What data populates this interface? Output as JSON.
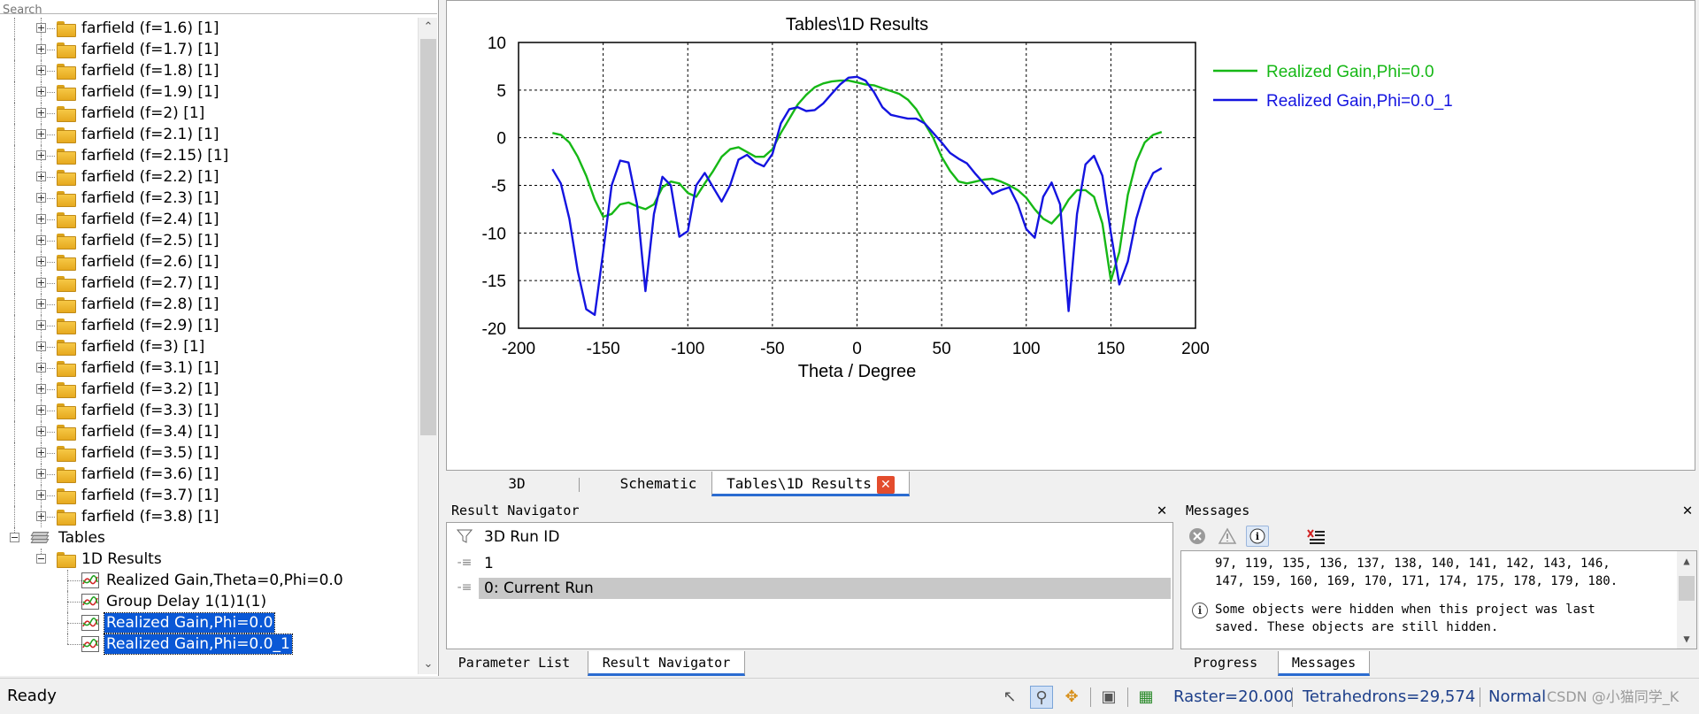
{
  "search": {
    "placeholder": "Search"
  },
  "tree": {
    "farfields": [
      "farfield (f=1.6) [1]",
      "farfield (f=1.7) [1]",
      "farfield (f=1.8) [1]",
      "farfield (f=1.9) [1]",
      "farfield (f=2) [1]",
      "farfield (f=2.1) [1]",
      "farfield (f=2.15) [1]",
      "farfield (f=2.2) [1]",
      "farfield (f=2.3) [1]",
      "farfield (f=2.4) [1]",
      "farfield (f=2.5) [1]",
      "farfield (f=2.6) [1]",
      "farfield (f=2.7) [1]",
      "farfield (f=2.8) [1]",
      "farfield (f=2.9) [1]",
      "farfield (f=3) [1]",
      "farfield (f=3.1) [1]",
      "farfield (f=3.2) [1]",
      "farfield (f=3.3) [1]",
      "farfield (f=3.4) [1]",
      "farfield (f=3.5) [1]",
      "farfield (f=3.6) [1]",
      "farfield (f=3.7) [1]",
      "farfield (f=3.8) [1]"
    ],
    "tables_label": "Tables",
    "results_label": "1D Results",
    "results_items": [
      {
        "label": "Realized Gain,Theta=0,Phi=0.0",
        "selected": false
      },
      {
        "label": "Group Delay 1(1)1(1)",
        "selected": false
      },
      {
        "label": "Realized Gain,Phi=0.0",
        "selected": true
      },
      {
        "label": "Realized Gain,Phi=0.0_1",
        "selected": true
      }
    ]
  },
  "chart_data": {
    "type": "line",
    "title": "Tables\\1D Results",
    "xlabel": "Theta / Degree",
    "ylabel": "",
    "xlim": [
      -200,
      200
    ],
    "ylim": [
      -20,
      10
    ],
    "xticks": [
      -200,
      -150,
      -100,
      -50,
      0,
      50,
      100,
      150,
      200
    ],
    "yticks": [
      -20,
      -15,
      -10,
      -5,
      0,
      5,
      10
    ],
    "grid": true,
    "legend_position": "right",
    "series": [
      {
        "name": "Realized Gain,Phi=0.0",
        "color": "#16b816",
        "x": [
          -180,
          -175,
          -170,
          -165,
          -160,
          -155,
          -150,
          -145,
          -140,
          -135,
          -130,
          -125,
          -120,
          -115,
          -110,
          -105,
          -100,
          -95,
          -90,
          -85,
          -80,
          -75,
          -70,
          -65,
          -60,
          -55,
          -50,
          -45,
          -40,
          -35,
          -30,
          -25,
          -20,
          -15,
          -10,
          -5,
          0,
          5,
          10,
          15,
          20,
          25,
          30,
          35,
          40,
          45,
          50,
          55,
          60,
          65,
          70,
          75,
          80,
          85,
          90,
          95,
          100,
          105,
          110,
          115,
          120,
          125,
          130,
          135,
          140,
          145,
          150,
          155,
          160,
          165,
          170,
          175,
          180
        ],
        "y": [
          0.5,
          0.3,
          -0.5,
          -2,
          -4,
          -6.5,
          -8.3,
          -8,
          -7,
          -6.8,
          -7.2,
          -7.5,
          -7,
          -5.2,
          -4.6,
          -4.8,
          -5.8,
          -6.2,
          -4.8,
          -3.5,
          -2,
          -1.2,
          -1,
          -1.5,
          -2,
          -2,
          -1.2,
          0.5,
          2,
          3.5,
          4.5,
          5.3,
          5.7,
          5.9,
          6,
          6,
          5.8,
          5.6,
          5.5,
          5.2,
          4.9,
          4.6,
          4,
          3,
          1.5,
          0,
          -2,
          -3.5,
          -4.6,
          -4.8,
          -4.6,
          -4.4,
          -4.3,
          -4.6,
          -5,
          -5.5,
          -6.3,
          -7.5,
          -8.5,
          -9,
          -8,
          -6.5,
          -5.5,
          -5.5,
          -6.2,
          -9,
          -15,
          -12,
          -6,
          -2.5,
          -0.5,
          0.3,
          0.6
        ]
      },
      {
        "name": "Realized Gain,Phi=0.0_1",
        "color": "#1414e0",
        "x": [
          -180,
          -175,
          -170,
          -165,
          -160,
          -155,
          -150,
          -145,
          -140,
          -135,
          -130,
          -125,
          -120,
          -115,
          -110,
          -105,
          -100,
          -95,
          -90,
          -85,
          -80,
          -75,
          -70,
          -65,
          -60,
          -55,
          -50,
          -45,
          -40,
          -35,
          -30,
          -25,
          -20,
          -15,
          -10,
          -5,
          0,
          5,
          10,
          15,
          20,
          25,
          30,
          35,
          40,
          45,
          50,
          55,
          60,
          65,
          70,
          75,
          80,
          85,
          90,
          95,
          100,
          105,
          110,
          115,
          120,
          125,
          130,
          135,
          140,
          145,
          150,
          155,
          160,
          165,
          170,
          175,
          180
        ],
        "y": [
          -3.3,
          -4.8,
          -8.5,
          -14,
          -18,
          -18.6,
          -12,
          -5,
          -2.4,
          -2.6,
          -7,
          -16.1,
          -8,
          -4.1,
          -5,
          -10.4,
          -9.8,
          -5,
          -3.7,
          -5.2,
          -6.7,
          -5,
          -2.3,
          -1.8,
          -2.6,
          -3,
          -1.7,
          1.5,
          3,
          3.2,
          2.8,
          2.9,
          3.6,
          4.6,
          5.6,
          6.3,
          6.4,
          6,
          4.8,
          3.2,
          2.4,
          2.2,
          2,
          2,
          1.5,
          0.5,
          -0.5,
          -1.6,
          -2.2,
          -2.7,
          -3.8,
          -4.8,
          -5.9,
          -5.5,
          -5.2,
          -7,
          -9.6,
          -10.5,
          -6.2,
          -4.7,
          -7,
          -18.2,
          -8,
          -2.8,
          -1.9,
          -4,
          -10,
          -15.4,
          -13,
          -8.5,
          -5.5,
          -3.7,
          -3.2
        ]
      }
    ]
  },
  "doc_tabs": {
    "tab_3d": "3D",
    "tab_schematic": "Schematic",
    "tab_results": "Tables\\1D Results"
  },
  "result_navigator": {
    "title": "Result Navigator",
    "rows": [
      "3D Run ID",
      "1",
      "0: Current Run"
    ]
  },
  "bottom_tabs": {
    "parameter_list": "Parameter List",
    "result_navigator": "Result Navigator"
  },
  "messages": {
    "title": "Messages",
    "line1": "97, 119, 135, 136, 137, 138, 140, 141, 142, 143, 146,",
    "line2": "147, 159, 160, 169, 170, 171, 174, 175, 178, 179, 180.",
    "info_line1": "Some objects were hidden when this project was last",
    "info_line2": "saved. These objects are still hidden."
  },
  "message_tabs": {
    "progress": "Progress",
    "messages": "Messages"
  },
  "status": {
    "ready": "Ready",
    "raster": "Raster=20.000",
    "tetrahedrons": "Tetrahedrons=29,574",
    "normal": "Normal",
    "watermark": "CSDN @小猫同学_K"
  },
  "colors": {
    "selection": "#0a58d6",
    "accent_tab": "#2b6cd1",
    "close_tab": "#e34c2d"
  }
}
